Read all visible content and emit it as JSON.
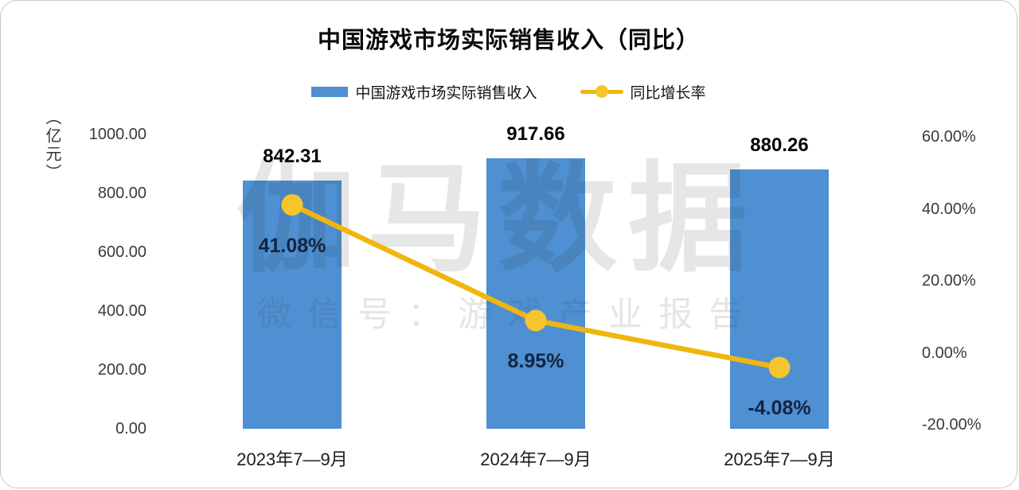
{
  "title": "中国游戏市场实际销售收入（同比）",
  "legend": [
    {
      "type": "bar",
      "label": "中国游戏市场实际销售收入",
      "color": "#4e90d2"
    },
    {
      "type": "line",
      "label": "同比增长率",
      "color": "#efb60e",
      "marker_color": "#f6c52e"
    }
  ],
  "watermark": {
    "main": "伽马数据",
    "sub": "微信号：游戏产业报告"
  },
  "chart_data": {
    "type": "bar",
    "combo": "bar+line",
    "title": "中国游戏市场实际销售收入（同比）",
    "categories": [
      "2023年7—9月",
      "2024年7—9月",
      "2025年7—9月"
    ],
    "series": [
      {
        "name": "中国游戏市场实际销售收入",
        "type": "bar",
        "axis": "left",
        "unit": "亿元",
        "values": [
          842.31,
          917.66,
          880.26
        ],
        "labels": [
          "842.31",
          "917.66",
          "880.26"
        ],
        "color": "#4e90d2"
      },
      {
        "name": "同比增长率",
        "type": "line",
        "axis": "right",
        "unit": "%",
        "values": [
          41.08,
          8.95,
          -4.08
        ],
        "labels": [
          "41.08%",
          "8.95%",
          "-4.08%"
        ],
        "color": "#efb60e",
        "marker_color": "#f6c52e"
      }
    ],
    "left_axis": {
      "title": "（亿元）",
      "min": 0,
      "max": 1000,
      "tick_labels": [
        "1000.00",
        "800.00",
        "600.00",
        "400.00",
        "200.00",
        "0.00"
      ],
      "tick_values": [
        1000,
        800,
        600,
        400,
        200,
        0
      ]
    },
    "right_axis": {
      "min": -20,
      "max": 60,
      "tick_labels": [
        "60.00%",
        "40.00%",
        "20.00%",
        "0.00%",
        "-20.00%"
      ],
      "tick_values": [
        60,
        40,
        20,
        0,
        -20
      ]
    },
    "grid": false,
    "legend_position": "top"
  }
}
